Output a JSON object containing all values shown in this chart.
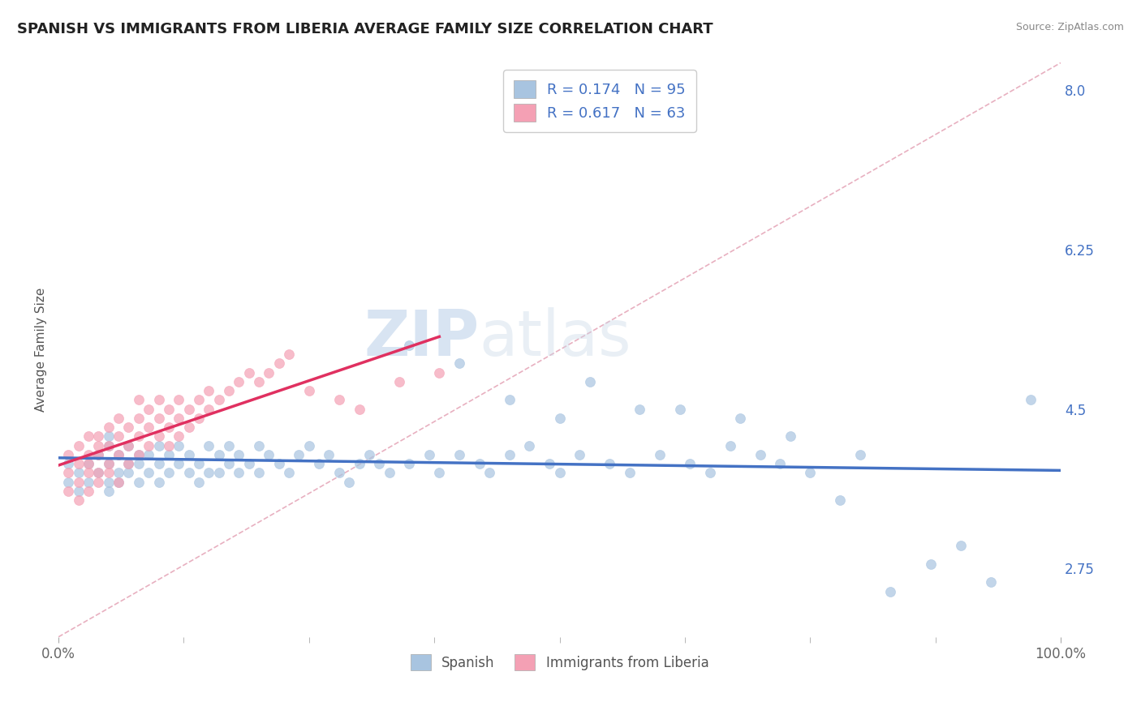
{
  "title": "SPANISH VS IMMIGRANTS FROM LIBERIA AVERAGE FAMILY SIZE CORRELATION CHART",
  "source": "Source: ZipAtlas.com",
  "ylabel": "Average Family Size",
  "yticks": [
    2.75,
    4.5,
    6.25,
    8.0
  ],
  "xlim": [
    0.0,
    1.0
  ],
  "ylim": [
    2.0,
    8.3
  ],
  "legend_r1": "0.174",
  "legend_n1": "95",
  "legend_r2": "0.617",
  "legend_n2": "63",
  "color_spanish": "#a8c4e0",
  "color_liberia": "#f4a0b4",
  "color_line_spanish": "#4472c4",
  "color_line_liberia": "#e03060",
  "color_diagonal": "#f0b8c8",
  "background_color": "#ffffff",
  "watermark_zip": "ZIP",
  "watermark_atlas": "atlas",
  "title_fontsize": 13,
  "label_fontsize": 11,
  "tick_fontsize": 12,
  "spanish_x": [
    0.01,
    0.01,
    0.02,
    0.02,
    0.03,
    0.03,
    0.04,
    0.04,
    0.05,
    0.05,
    0.05,
    0.05,
    0.05,
    0.06,
    0.06,
    0.06,
    0.07,
    0.07,
    0.07,
    0.08,
    0.08,
    0.08,
    0.09,
    0.09,
    0.1,
    0.1,
    0.1,
    0.11,
    0.11,
    0.12,
    0.12,
    0.13,
    0.13,
    0.14,
    0.14,
    0.15,
    0.15,
    0.16,
    0.16,
    0.17,
    0.17,
    0.18,
    0.18,
    0.19,
    0.2,
    0.2,
    0.21,
    0.22,
    0.23,
    0.24,
    0.25,
    0.26,
    0.27,
    0.28,
    0.29,
    0.3,
    0.31,
    0.32,
    0.33,
    0.35,
    0.37,
    0.38,
    0.4,
    0.42,
    0.43,
    0.45,
    0.47,
    0.49,
    0.5,
    0.52,
    0.55,
    0.57,
    0.6,
    0.63,
    0.65,
    0.67,
    0.7,
    0.72,
    0.75,
    0.8,
    0.35,
    0.4,
    0.45,
    0.5,
    0.53,
    0.58,
    0.62,
    0.68,
    0.73,
    0.78,
    0.83,
    0.87,
    0.9,
    0.93,
    0.97
  ],
  "spanish_y": [
    3.7,
    3.9,
    3.6,
    3.8,
    3.7,
    3.9,
    3.8,
    4.0,
    3.7,
    3.9,
    3.6,
    4.1,
    4.2,
    3.8,
    4.0,
    3.7,
    3.9,
    4.1,
    3.8,
    4.0,
    3.7,
    3.9,
    4.0,
    3.8,
    4.1,
    3.9,
    3.7,
    4.0,
    3.8,
    4.1,
    3.9,
    3.8,
    4.0,
    3.9,
    3.7,
    4.1,
    3.8,
    4.0,
    3.8,
    4.1,
    3.9,
    3.8,
    4.0,
    3.9,
    4.1,
    3.8,
    4.0,
    3.9,
    3.8,
    4.0,
    4.1,
    3.9,
    4.0,
    3.8,
    3.7,
    3.9,
    4.0,
    3.9,
    3.8,
    3.9,
    4.0,
    3.8,
    4.0,
    3.9,
    3.8,
    4.0,
    4.1,
    3.9,
    3.8,
    4.0,
    3.9,
    3.8,
    4.0,
    3.9,
    3.8,
    4.1,
    4.0,
    3.9,
    3.8,
    4.0,
    5.2,
    5.0,
    4.6,
    4.4,
    4.8,
    4.5,
    4.5,
    4.4,
    4.2,
    3.5,
    2.5,
    2.8,
    3.0,
    2.6,
    4.6
  ],
  "liberia_x": [
    0.01,
    0.01,
    0.01,
    0.02,
    0.02,
    0.02,
    0.02,
    0.03,
    0.03,
    0.03,
    0.03,
    0.03,
    0.04,
    0.04,
    0.04,
    0.04,
    0.04,
    0.05,
    0.05,
    0.05,
    0.05,
    0.06,
    0.06,
    0.06,
    0.06,
    0.07,
    0.07,
    0.07,
    0.08,
    0.08,
    0.08,
    0.08,
    0.09,
    0.09,
    0.09,
    0.1,
    0.1,
    0.1,
    0.11,
    0.11,
    0.11,
    0.12,
    0.12,
    0.12,
    0.13,
    0.13,
    0.14,
    0.14,
    0.15,
    0.15,
    0.16,
    0.17,
    0.18,
    0.19,
    0.2,
    0.21,
    0.22,
    0.23,
    0.25,
    0.28,
    0.3,
    0.34,
    0.38
  ],
  "liberia_y": [
    3.6,
    3.8,
    4.0,
    3.7,
    3.9,
    4.1,
    3.5,
    3.8,
    4.0,
    3.6,
    4.2,
    3.9,
    3.8,
    4.0,
    4.2,
    3.7,
    4.1,
    3.9,
    4.1,
    4.3,
    3.8,
    4.0,
    4.2,
    3.7,
    4.4,
    4.1,
    3.9,
    4.3,
    4.0,
    4.2,
    4.4,
    4.6,
    4.1,
    4.3,
    4.5,
    4.2,
    4.4,
    4.6,
    4.3,
    4.5,
    4.1,
    4.4,
    4.6,
    4.2,
    4.5,
    4.3,
    4.6,
    4.4,
    4.5,
    4.7,
    4.6,
    4.7,
    4.8,
    4.9,
    4.8,
    4.9,
    5.0,
    5.1,
    4.7,
    4.6,
    4.5,
    4.8,
    4.9
  ]
}
